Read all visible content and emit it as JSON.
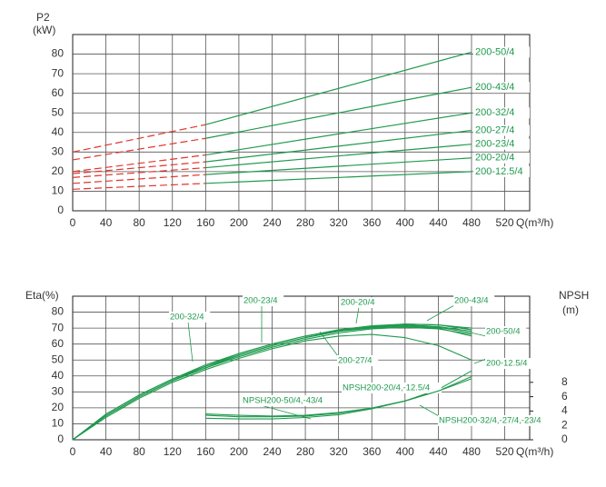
{
  "chart_data": [
    {
      "type": "line",
      "ylabel": "P2",
      "yunit": "(kW)",
      "xlabel": "Q(m³/h)",
      "xlim": [
        0,
        550
      ],
      "ylim": [
        0,
        90
      ],
      "xticks": [
        0,
        40,
        80,
        120,
        160,
        200,
        240,
        280,
        320,
        360,
        400,
        440,
        480,
        520
      ],
      "yticks": [
        0,
        10,
        20,
        30,
        40,
        50,
        60,
        70,
        80
      ],
      "grid": true,
      "dashed_segments": [
        0
      ],
      "dashed_color": "#e0352c",
      "series": [
        {
          "name": "200-50/4",
          "color": "#1f9a4e",
          "x": [
            0,
            160,
            480
          ],
          "values": [
            30,
            44,
            81
          ]
        },
        {
          "name": "200-43/4",
          "color": "#1f9a4e",
          "x": [
            0,
            160,
            480
          ],
          "values": [
            26,
            37,
            63
          ]
        },
        {
          "name": "200-32/4",
          "color": "#1f9a4e",
          "x": [
            0,
            160,
            480
          ],
          "values": [
            20,
            28.5,
            50
          ]
        },
        {
          "name": "200-27/4",
          "color": "#1f9a4e",
          "x": [
            0,
            160,
            480
          ],
          "values": [
            19,
            25,
            41
          ]
        },
        {
          "name": "200-23/4",
          "color": "#1f9a4e",
          "x": [
            0,
            160,
            480
          ],
          "values": [
            17,
            22,
            34
          ]
        },
        {
          "name": "200-20/4",
          "color": "#1f9a4e",
          "x": [
            0,
            160,
            480
          ],
          "values": [
            14,
            18.5,
            27
          ]
        },
        {
          "name": "200-12.5/4",
          "color": "#1f9a4e",
          "x": [
            0,
            160,
            480
          ],
          "values": [
            11,
            14,
            20
          ]
        }
      ]
    },
    {
      "type": "line",
      "ylabel": "Eta(%)",
      "y2label": "NPSH",
      "y2unit": "(m)",
      "xlabel": "Q(m³/h)",
      "xlim": [
        0,
        550
      ],
      "ylim": [
        0,
        90
      ],
      "y2lim": [
        0,
        20
      ],
      "xticks": [
        0,
        40,
        80,
        120,
        160,
        200,
        240,
        280,
        320,
        360,
        400,
        440,
        480,
        520
      ],
      "yticks": [
        0,
        10,
        20,
        30,
        40,
        50,
        60,
        70,
        80
      ],
      "y2ticks": [
        0,
        2,
        4,
        6,
        8
      ],
      "grid": true,
      "series": [
        {
          "name": "200-50/4",
          "color": "#1f9a4e",
          "x": [
            0,
            40,
            80,
            120,
            160,
            200,
            240,
            280,
            320,
            360,
            400,
            440,
            480
          ],
          "values": [
            0,
            16,
            28,
            38,
            46,
            53,
            59,
            64,
            68,
            71,
            72.5,
            72,
            69
          ]
        },
        {
          "name": "200-43/4",
          "color": "#1f9a4e",
          "x": [
            0,
            40,
            80,
            120,
            160,
            200,
            240,
            280,
            320,
            360,
            400,
            440,
            480
          ],
          "values": [
            0,
            16,
            28,
            38,
            47,
            54,
            60,
            65,
            69,
            71.5,
            72.5,
            72,
            70
          ]
        },
        {
          "name": "200-32/4",
          "color": "#1f9a4e",
          "x": [
            0,
            40,
            80,
            120,
            160,
            200,
            240,
            280,
            320,
            360,
            400,
            440,
            480
          ],
          "values": [
            0,
            15,
            27,
            37,
            46,
            53,
            59,
            64,
            68,
            70.5,
            71.5,
            70.5,
            67
          ]
        },
        {
          "name": "200-27/4",
          "color": "#1f9a4e",
          "x": [
            0,
            40,
            80,
            120,
            160,
            200,
            240,
            280,
            320,
            360,
            400,
            440,
            480
          ],
          "values": [
            0,
            15,
            27,
            37,
            45,
            52,
            58,
            63,
            67,
            69.5,
            70.5,
            69.5,
            66
          ]
        },
        {
          "name": "200-23/4",
          "color": "#1f9a4e",
          "x": [
            0,
            40,
            80,
            120,
            160,
            200,
            240,
            280,
            320,
            360,
            400,
            440,
            480
          ],
          "values": [
            0,
            16,
            28,
            38,
            46,
            54,
            60,
            65,
            68.5,
            71,
            72,
            71,
            68
          ]
        },
        {
          "name": "200-20/4",
          "color": "#1f9a4e",
          "x": [
            0,
            40,
            80,
            120,
            160,
            200,
            240,
            280,
            320,
            360,
            400,
            440,
            480
          ],
          "values": [
            0,
            15,
            27,
            37,
            45,
            53,
            59,
            64,
            68,
            70,
            71,
            70,
            65
          ]
        },
        {
          "name": "200-12.5/4",
          "color": "#1f9a4e",
          "x": [
            0,
            40,
            80,
            120,
            160,
            200,
            240,
            280,
            320,
            360,
            400,
            440,
            480
          ],
          "values": [
            0,
            14,
            26,
            36,
            44,
            51,
            57,
            62,
            65,
            66,
            64,
            59,
            50
          ]
        },
        {
          "name": "NPSH200-50/4,-43/4",
          "color": "#1f9a4e",
          "axis": "y2",
          "x": [
            160,
            200,
            240,
            280,
            320,
            360,
            400,
            440,
            480
          ],
          "values": [
            3.6,
            3.4,
            3.3,
            3.4,
            3.8,
            4.4,
            5.4,
            6.8,
            8.8
          ]
        },
        {
          "name": "NPSH200-20/4,-12.5/4",
          "color": "#1f9a4e",
          "axis": "y2",
          "x": [
            160,
            200,
            240,
            280,
            320,
            360,
            400,
            440,
            480
          ],
          "values": [
            3.0,
            2.9,
            2.9,
            3.1,
            3.5,
            4.3,
            5.4,
            7.0,
            9.6
          ]
        },
        {
          "name": "NPSH200-32/4,-27/4,-23/4",
          "color": "#1f9a4e",
          "axis": "y2",
          "x": [
            160,
            200,
            240,
            280,
            320,
            360,
            400,
            440,
            480
          ],
          "values": [
            3.4,
            3.2,
            3.2,
            3.3,
            3.7,
            4.4,
            5.4,
            6.8,
            8.5
          ]
        }
      ]
    }
  ]
}
